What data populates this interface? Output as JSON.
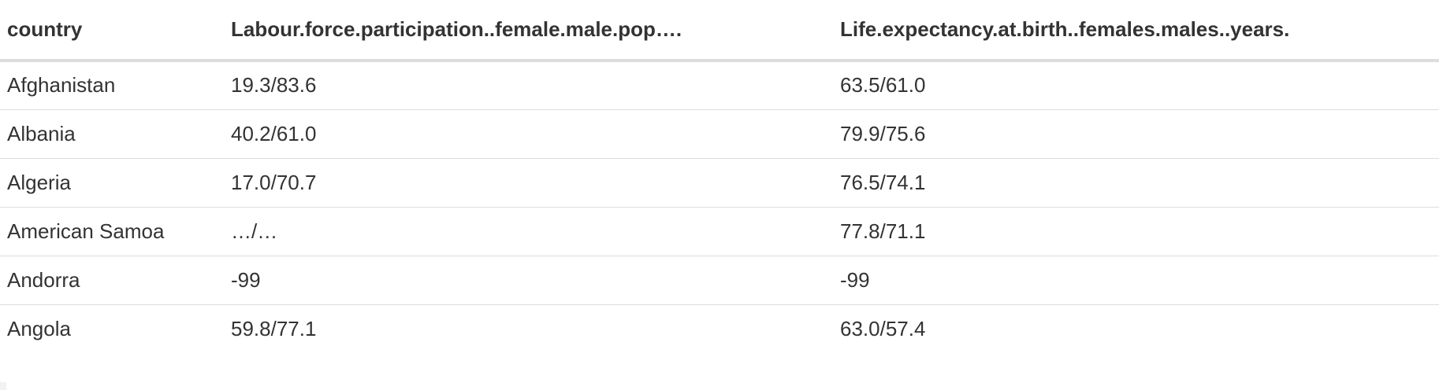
{
  "table": {
    "headers": [
      "country",
      "Labour.force.participation..female.male.pop….",
      "Life.expectancy.at.birth..females.males..years."
    ],
    "rows": [
      [
        "Afghanistan",
        "19.3/83.6",
        "63.5/61.0"
      ],
      [
        "Albania",
        "40.2/61.0",
        "79.9/75.6"
      ],
      [
        "Algeria",
        "17.0/70.7",
        "76.5/74.1"
      ],
      [
        "American Samoa",
        "…/…",
        "77.8/71.1"
      ],
      [
        "Andorra",
        "-99",
        "-99"
      ],
      [
        "Angola",
        "59.8/77.1",
        "63.0/57.4"
      ]
    ]
  }
}
